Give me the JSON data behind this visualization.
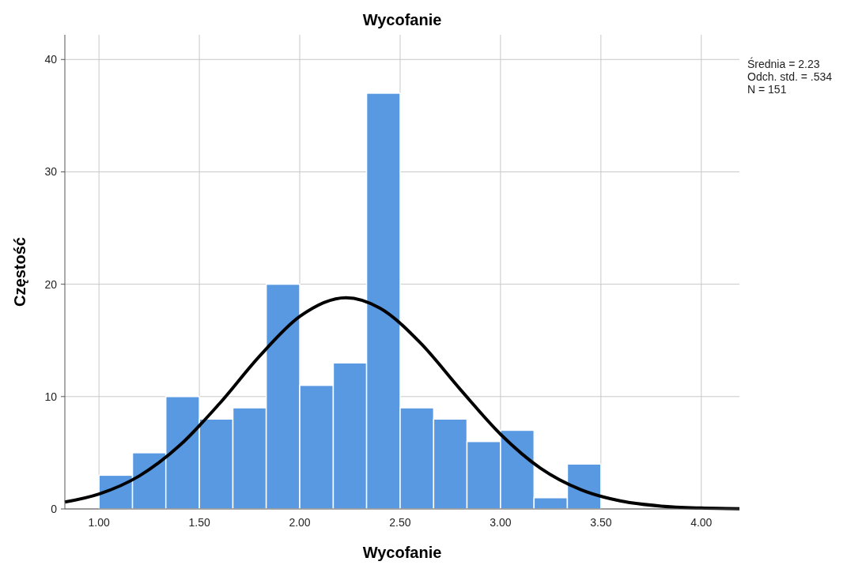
{
  "chart_data": {
    "type": "histogram",
    "title": "Wycofanie",
    "xlabel": "Wycofanie",
    "ylabel": "Częstość",
    "bins": [
      1,
      1.167,
      1.333,
      1.5,
      1.667,
      1.833,
      2,
      2.167,
      2.333,
      2.5,
      2.667,
      2.833,
      3,
      3.167,
      3.333,
      3.5
    ],
    "series": [
      {
        "color": "#5899e2",
        "values": [
          3,
          5,
          10,
          8,
          9,
          20,
          11,
          13,
          37,
          9,
          8,
          6,
          7,
          1,
          4
        ]
      },
      {
        "type": "line",
        "color": "#000000",
        "x": [
          0.83,
          1.0,
          1.2,
          1.4,
          1.6,
          1.8,
          2.0,
          2.23,
          2.4,
          2.6,
          2.8,
          3.0,
          3.2,
          3.4,
          3.6,
          3.8,
          4.0,
          4.19
        ],
        "values": [
          0.61,
          1.33,
          2.93,
          5.62,
          9.37,
          13.6,
          17.13,
          18.8,
          17.87,
          14.79,
          10.63,
          6.65,
          3.61,
          1.71,
          0.7,
          0.25,
          0.08,
          0.02
        ]
      }
    ],
    "xlim": [
      0.83,
      4.19
    ],
    "xticks": [
      {
        "value": 1,
        "label": "1.00"
      },
      {
        "value": 1.5,
        "label": "1.50"
      },
      {
        "value": 2,
        "label": "2.00"
      },
      {
        "value": 2.5,
        "label": "2.50"
      },
      {
        "value": 3,
        "label": "3.00"
      },
      {
        "value": 3.5,
        "label": "3.50"
      },
      {
        "value": 4,
        "label": "4.00"
      }
    ],
    "ylim": [
      0,
      42.2
    ],
    "yticks": [
      0,
      10,
      20,
      30,
      40
    ],
    "grid": true,
    "annotations": [
      "Średnia = 2.23",
      "Odch. std. = .534",
      "N = 151"
    ]
  }
}
